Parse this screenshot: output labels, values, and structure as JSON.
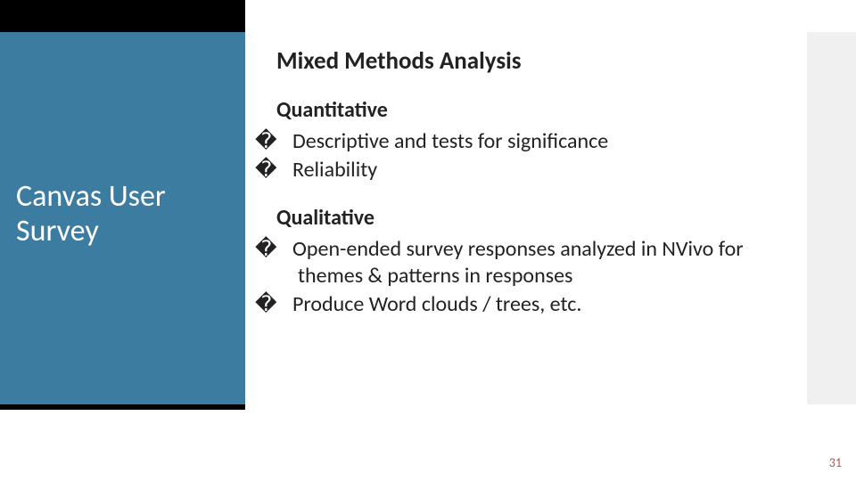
{
  "colors": {
    "sidebar_dark": "#000000",
    "sidebar_blue": "#3c7ca0",
    "decor_light": "#f0f0f0",
    "sidebar_text": "#ffffff",
    "body_text": "#222222",
    "page_num": "#c0504d",
    "background": "#ffffff"
  },
  "fonts": {
    "family": "Calibri",
    "sidebar_title_size": 34,
    "content_title_size": 27,
    "heading_size": 24,
    "body_size": 24,
    "page_num_size": 14
  },
  "bullet_glyph": "�",
  "sidebar": {
    "title": "Canvas User Survey"
  },
  "content": {
    "title": "Mixed Methods Analysis",
    "sections": [
      {
        "heading": "Quantitative",
        "items": [
          "Descriptive and tests for significance",
          "Reliability"
        ]
      },
      {
        "heading": "Qualitative",
        "items": [
          "Open-ended survey responses analyzed in NVivo for themes & patterns in responses",
          "Produce Word clouds / trees, etc."
        ]
      }
    ]
  },
  "page_number": "31"
}
